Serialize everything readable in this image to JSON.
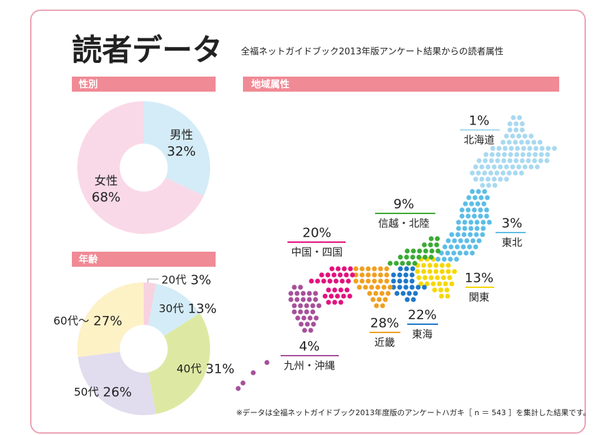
{
  "header": {
    "title": "読者データ",
    "subtitle": "全福ネットガイドブック2013年版アンケート結果からの読者属性"
  },
  "chart_data": [
    {
      "type": "pie",
      "title": "性別",
      "categories": [
        "男性",
        "女性"
      ],
      "values": [
        32,
        68
      ],
      "value_labels": [
        "32%",
        "68%"
      ],
      "colors": [
        "#d4ecf7",
        "#f9d9e7"
      ]
    },
    {
      "type": "pie",
      "title": "年齢",
      "categories": [
        "20代",
        "30代",
        "40代",
        "50代",
        "60代〜"
      ],
      "values": [
        3,
        13,
        31,
        26,
        27
      ],
      "value_labels": [
        "3%",
        "13%",
        "31%",
        "26%",
        "27%"
      ],
      "colors": [
        "#f7d3e0",
        "#d4ecf7",
        "#dde9a3",
        "#e2dcef",
        "#fdf1c6"
      ]
    }
  ],
  "region_map": {
    "title": "地域属性",
    "regions": [
      {
        "name": "北海道",
        "value": 1,
        "value_label": "1%",
        "color": "#a9d9f0"
      },
      {
        "name": "東北",
        "value": 3,
        "value_label": "3%",
        "color": "#5dbde6"
      },
      {
        "name": "関東",
        "value": 13,
        "value_label": "13%",
        "color": "#f5d800"
      },
      {
        "name": "東海",
        "value": 22,
        "value_label": "22%",
        "color": "#1e78c8"
      },
      {
        "name": "信越・北陸",
        "value": 9,
        "value_label": "9%",
        "color": "#3aaa35"
      },
      {
        "name": "近畿",
        "value": 28,
        "value_label": "28%",
        "color": "#f0a020"
      },
      {
        "name": "中国・四国",
        "value": 20,
        "value_label": "20%",
        "color": "#e2127e"
      },
      {
        "name": "九州・沖縄",
        "value": 4,
        "value_label": "4%",
        "color": "#a6509a"
      }
    ]
  },
  "note": "※データは全福ネットガイドブック2013年度版のアンケートハガキ［ n ＝ 543 ］を集計した結果です。"
}
